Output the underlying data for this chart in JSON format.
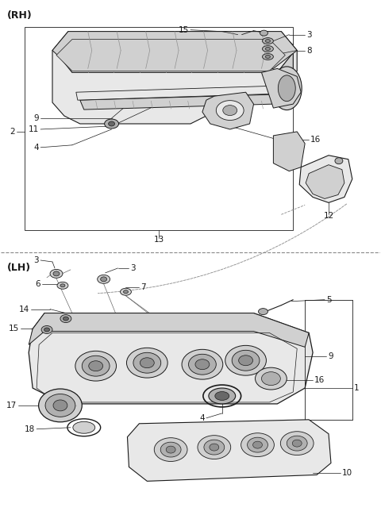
{
  "bg_color": "#ffffff",
  "line_color": "#1a1a1a",
  "gray1": "#e8e8e8",
  "gray2": "#d0d0d0",
  "gray3": "#b0b0b0",
  "gray4": "#909090",
  "gray5": "#686868",
  "dashed_color": "#888888",
  "rh_label": "(RH)",
  "lh_label": "(LH)",
  "figsize": [
    4.8,
    6.49
  ],
  "dpi": 100,
  "font_size": 7.5,
  "font_size_section": 9
}
